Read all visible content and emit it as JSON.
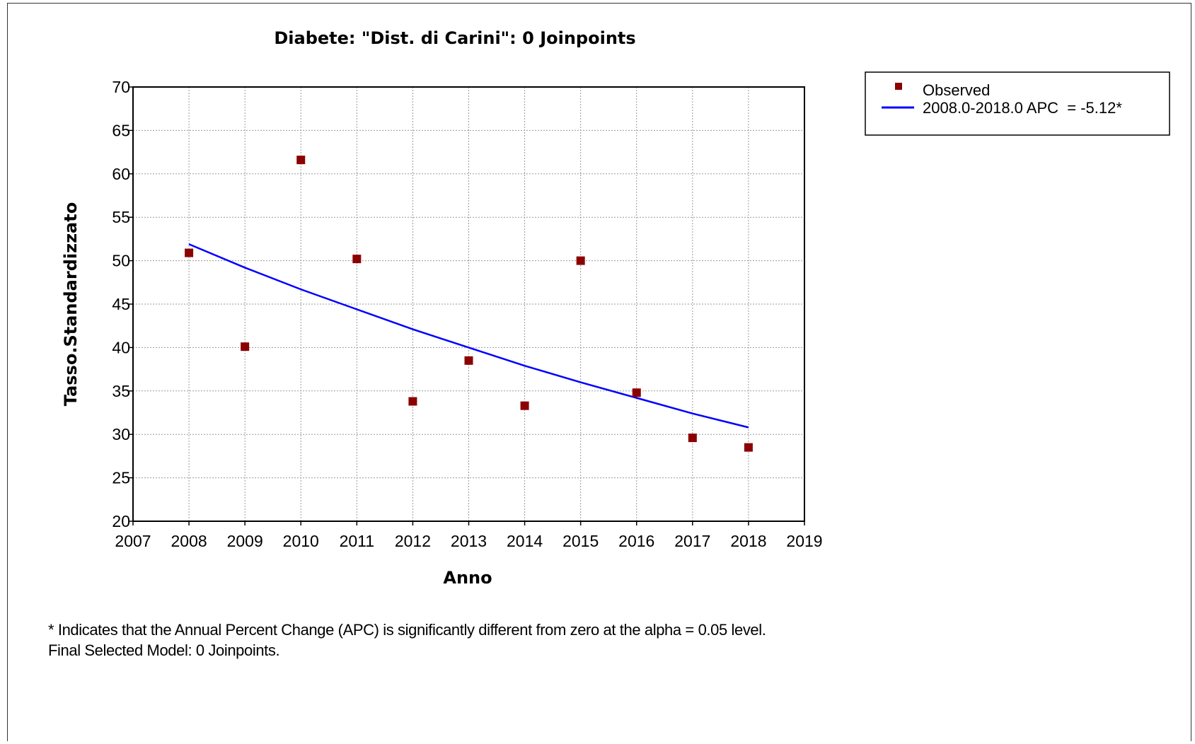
{
  "chart_data": {
    "type": "scatter",
    "title": "Diabete: \"Dist. di Carini\": 0 Joinpoints",
    "xlabel": "Anno",
    "ylabel": "Tasso.Standardizzato",
    "xlim": [
      2007,
      2019
    ],
    "ylim": [
      20,
      70
    ],
    "x_ticks": [
      2007,
      2008,
      2009,
      2010,
      2011,
      2012,
      2013,
      2014,
      2015,
      2016,
      2017,
      2018,
      2019
    ],
    "y_ticks": [
      20,
      25,
      30,
      35,
      40,
      45,
      50,
      55,
      60,
      65,
      70
    ],
    "grid": true,
    "legend_position": "top-right outside",
    "series": [
      {
        "name": "Observed",
        "kind": "points",
        "color": "#8b0000",
        "x": [
          2008,
          2009,
          2010,
          2011,
          2012,
          2013,
          2014,
          2015,
          2016,
          2017,
          2018
        ],
        "y": [
          50.9,
          40.1,
          61.6,
          50.2,
          33.8,
          38.5,
          33.3,
          50.0,
          34.8,
          29.6,
          28.5
        ]
      },
      {
        "name": "2008.0-2018.0 APC  = -5.12*",
        "kind": "line",
        "color": "#0000ff",
        "x": [
          2008,
          2009,
          2010,
          2011,
          2012,
          2013,
          2014,
          2015,
          2016,
          2017,
          2018
        ],
        "y": [
          51.9,
          49.2,
          46.7,
          44.4,
          42.1,
          40.0,
          37.9,
          36.0,
          34.2,
          32.4,
          30.8
        ]
      }
    ]
  },
  "footnote": {
    "line1": "* Indicates that the Annual Percent Change (APC) is significantly different from zero at the alpha = 0.05 level.",
    "line2": "Final Selected Model: 0 Joinpoints."
  }
}
